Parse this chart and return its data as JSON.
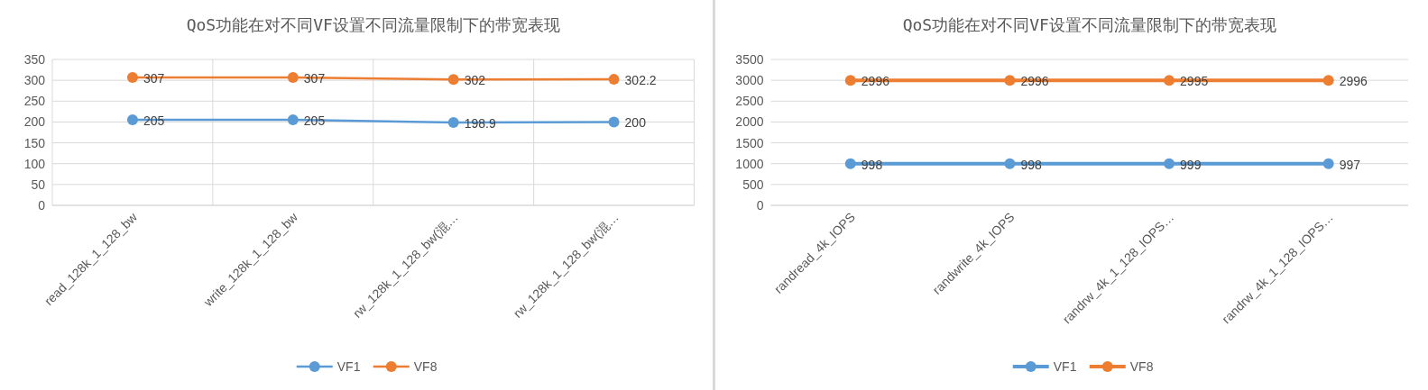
{
  "chart_data": [
    {
      "type": "line",
      "title": "QoS功能在对不同VF设置不同流量限制下的带宽表现",
      "categories": [
        "read_128k_1_128_bw",
        "write_128k_1_128_bw",
        "rw_128k_1_128_bw(混…",
        "rw_128k_1_128_bw(混…"
      ],
      "series": [
        {
          "name": "VF1",
          "color": "#5b9bd5",
          "values": [
            205,
            205,
            198.9,
            200
          ]
        },
        {
          "name": "VF8",
          "color": "#ed7d31",
          "values": [
            307,
            307,
            302,
            302.2
          ]
        }
      ],
      "ylim": [
        0,
        350
      ],
      "yticks": [
        0,
        50,
        100,
        150,
        200,
        250,
        300,
        350
      ],
      "grid": true,
      "legend": "bottom",
      "marker": "circle",
      "data_labels": true
    },
    {
      "type": "line",
      "title": "QoS功能在对不同VF设置不同流量限制下的带宽表现",
      "categories": [
        "randread_4k_IOPS",
        "randwrite_4k_IOPS",
        "randrw_4k_1_128_IOPS…",
        "randrw_4k_1_128_IOPS…"
      ],
      "series": [
        {
          "name": "VF1",
          "color": "#5b9bd5",
          "values": [
            998,
            998,
            999,
            997
          ]
        },
        {
          "name": "VF8",
          "color": "#ed7d31",
          "values": [
            2996,
            2996,
            2995,
            2996
          ]
        }
      ],
      "ylim": [
        0,
        3500
      ],
      "yticks": [
        0,
        500,
        1000,
        1500,
        2000,
        2500,
        3000,
        3500
      ],
      "grid": "y",
      "legend": "bottom",
      "marker": "circle",
      "data_labels": true
    }
  ]
}
